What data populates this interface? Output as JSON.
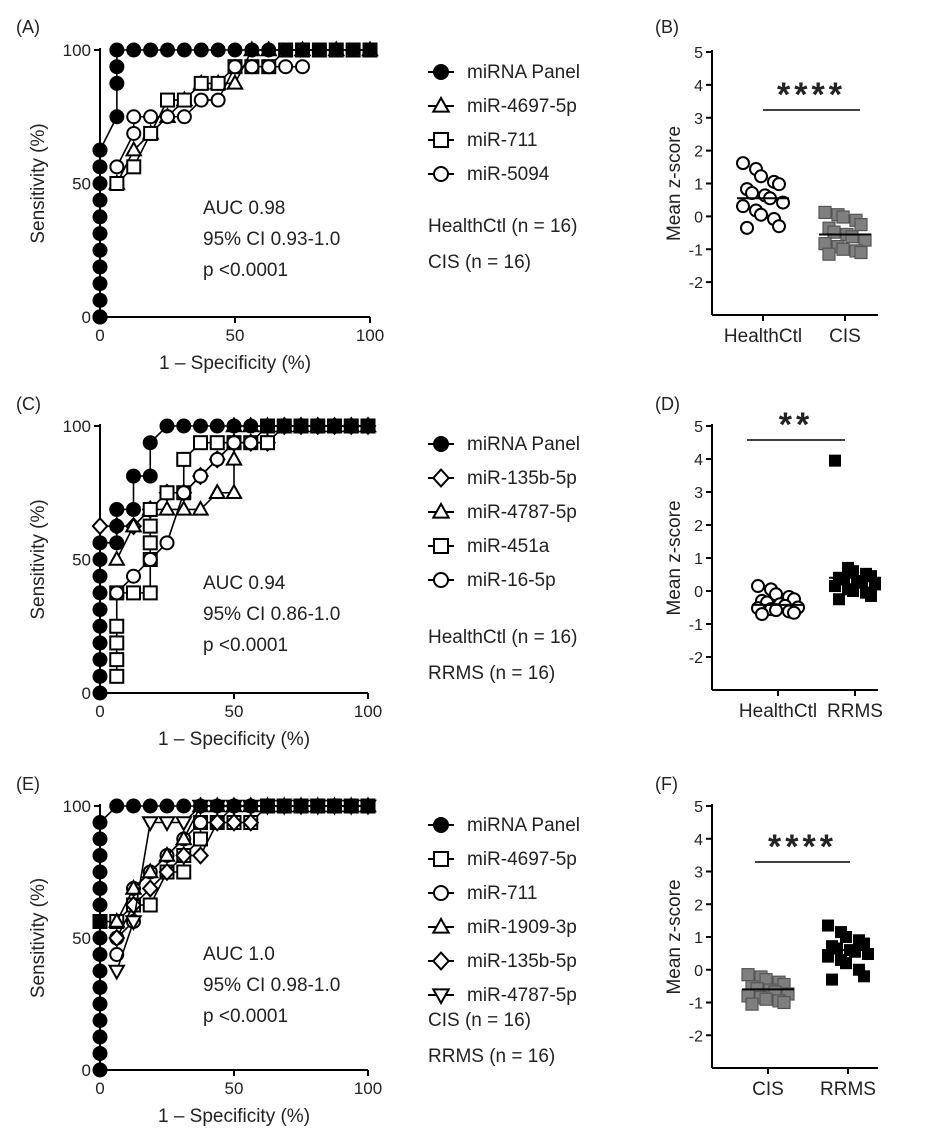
{
  "chart_data": [
    {
      "panel": "(A)",
      "type": "line",
      "xlabel": "1 – Specificity (%)",
      "ylabel": "Sensitivity (%)",
      "xlim": [
        0,
        100
      ],
      "ylim": [
        0,
        100
      ],
      "xticks": [
        "0",
        "50",
        "100"
      ],
      "yticks": [
        "0",
        "50",
        "100"
      ],
      "annotations": [
        "AUC 0.98",
        "95% CI 0.93-1.0",
        "p <0.0001"
      ],
      "groups": [
        "HealthCtl (n = 16)",
        "CIS (n = 16)"
      ],
      "series": [
        {
          "name": "miRNA Panel",
          "marker": "circle-filled",
          "x": [
            0,
            0,
            0,
            0,
            0,
            0,
            0,
            0,
            0,
            0,
            0,
            0,
            0,
            0,
            0,
            6.25,
            6.25,
            6.25,
            6.25,
            12.5,
            18.75,
            25,
            31.25,
            37.5,
            43.75,
            50,
            56.25,
            62.5,
            68.75,
            75,
            81.25,
            87.5,
            93.75,
            100
          ],
          "y": [
            0,
            6.25,
            12.5,
            18.75,
            25,
            31.25,
            37.5,
            43.75,
            50,
            56.25,
            62.5,
            0,
            0,
            0,
            62.5,
            75,
            87.5,
            93.75,
            100,
            100,
            100,
            100,
            100,
            100,
            100,
            100,
            100,
            100,
            100,
            100,
            100,
            100,
            100,
            100
          ]
        },
        {
          "name": "miR-4697-5p",
          "marker": "triangle-up",
          "x": [
            6.25,
            12.5,
            18.75,
            25,
            31.25,
            37.5,
            43.75,
            50,
            56.25,
            62.5,
            75,
            87.5,
            100
          ],
          "y": [
            50,
            62.5,
            68.75,
            75,
            81.25,
            87.5,
            87.5,
            87.5,
            100,
            100,
            100,
            100,
            100
          ]
        },
        {
          "name": "miR-711",
          "marker": "square",
          "x": [
            6.25,
            12.5,
            18.75,
            25,
            31.25,
            37.5,
            43.75,
            50,
            56.25,
            62.5,
            68.75,
            75,
            81.25,
            87.5,
            93.75,
            100
          ],
          "y": [
            50,
            56.25,
            68.75,
            81.25,
            81.25,
            87.5,
            87.5,
            93.75,
            93.75,
            93.75,
            100,
            100,
            100,
            100,
            100,
            100
          ]
        },
        {
          "name": "miR-5094",
          "marker": "circle-open",
          "x": [
            6.25,
            12.5,
            12.5,
            18.75,
            25,
            31.25,
            37.5,
            43.75,
            50,
            56.25,
            62.5,
            68.75,
            75
          ],
          "y": [
            56.25,
            68.75,
            75,
            75,
            75,
            75,
            81.25,
            81.25,
            93.75,
            93.75,
            93.75,
            93.75,
            93.75
          ]
        }
      ]
    },
    {
      "panel": "(B)",
      "type": "scatter",
      "ylabel": "Mean z-score",
      "ylim": [
        -3,
        5
      ],
      "yticks": [
        "5",
        "4",
        "3",
        "2",
        "1",
        "0",
        "-1",
        "-2"
      ],
      "categories": [
        "HealthCtl",
        "CIS"
      ],
      "significance": "****",
      "series": [
        {
          "name": "HealthCtl",
          "marker": "circle-open",
          "mean": 0.55,
          "values": [
            1.62,
            1.44,
            1.22,
            1.05,
            0.98,
            0.83,
            0.71,
            0.64,
            0.55,
            0.42,
            0.31,
            0.18,
            0.05,
            -0.08,
            -0.3,
            -0.35
          ]
        },
        {
          "name": "CIS",
          "marker": "square-gray",
          "mean": -0.55,
          "values": [
            0.12,
            0.05,
            -0.02,
            -0.12,
            -0.25,
            -0.36,
            -0.48,
            -0.55,
            -0.62,
            -0.72,
            -0.83,
            -0.92,
            -1.0,
            -1.05,
            -1.1,
            -1.15
          ]
        }
      ]
    },
    {
      "panel": "(C)",
      "type": "line",
      "xlabel": "1 – Specificity (%)",
      "ylabel": "Sensitivity (%)",
      "xlim": [
        0,
        100
      ],
      "ylim": [
        0,
        100
      ],
      "xticks": [
        "0",
        "50",
        "100"
      ],
      "yticks": [
        "0",
        "50",
        "100"
      ],
      "annotations": [
        "AUC 0.94",
        "95% CI 0.86-1.0",
        "p <0.0001"
      ],
      "groups": [
        "HealthCtl (n = 16)",
        "RRMS (n = 16)"
      ],
      "series": [
        {
          "name": "miRNA Panel",
          "marker": "circle-filled",
          "x": [
            0,
            0,
            0,
            0,
            0,
            0,
            0,
            0,
            0,
            0,
            6.25,
            6.25,
            6.25,
            12.5,
            12.5,
            18.75,
            18.75,
            25,
            31.25,
            37.5,
            43.75,
            50,
            56.25,
            62.5,
            68.75,
            75,
            81.25,
            87.5,
            93.75,
            100
          ],
          "y": [
            0,
            6.25,
            12.5,
            18.75,
            25,
            31.25,
            37.5,
            43.75,
            50,
            56.25,
            56.25,
            62.5,
            68.75,
            68.75,
            81.25,
            81.25,
            93.75,
            100,
            100,
            100,
            100,
            100,
            100,
            100,
            100,
            100,
            100,
            100,
            100,
            100
          ]
        },
        {
          "name": "miR-135b-5p",
          "marker": "diamond",
          "x": [
            0,
            6.25,
            12.5,
            18.75,
            25,
            31.25,
            37.5,
            43.75,
            50,
            56.25,
            62.5,
            68.75,
            75,
            81.25,
            87.5,
            93.75,
            100
          ],
          "y": [
            62.5,
            62.5,
            62.5,
            68.75,
            75,
            75,
            81.25,
            87.5,
            93.75,
            93.75,
            93.75,
            100,
            100,
            100,
            100,
            100,
            100
          ]
        },
        {
          "name": "miR-4787-5p",
          "marker": "triangle-up",
          "x": [
            6.25,
            12.5,
            18.75,
            25,
            31.25,
            37.5,
            43.75,
            43.75,
            50,
            50,
            50,
            56.25,
            62.5,
            68.75,
            75,
            81.25,
            87.5,
            93.75,
            100
          ],
          "y": [
            50,
            62.5,
            68.75,
            68.75,
            68.75,
            68.75,
            75,
            75,
            75,
            87.5,
            100,
            100,
            100,
            100,
            100,
            100,
            100,
            100,
            100
          ]
        },
        {
          "name": "miR-451a",
          "marker": "square",
          "x": [
            6.25,
            6.25,
            6.25,
            6.25,
            6.25,
            12.5,
            18.75,
            18.75,
            18.75,
            18.75,
            18.75,
            25,
            31.25,
            31.25,
            37.5,
            43.75,
            50,
            56.25,
            62.5,
            62.5,
            68.75,
            75,
            81.25,
            87.5,
            93.75,
            100
          ],
          "y": [
            6.25,
            12.5,
            18.75,
            25,
            37.5,
            37.5,
            37.5,
            50,
            56.25,
            62.5,
            68.75,
            75,
            75,
            87.5,
            93.75,
            93.75,
            93.75,
            93.75,
            93.75,
            100,
            100,
            100,
            100,
            100,
            100,
            100
          ]
        },
        {
          "name": "miR-16-5p",
          "marker": "circle-open",
          "x": [
            6.25,
            12.5,
            18.75,
            25,
            31.25,
            37.5,
            43.75,
            50,
            56.25,
            62.5,
            68.75,
            75,
            81.25,
            87.5,
            93.75,
            100
          ],
          "y": [
            37.5,
            43.75,
            50,
            56.25,
            75,
            81.25,
            87.5,
            93.75,
            93.75,
            100,
            100,
            100,
            100,
            100,
            100,
            100
          ]
        }
      ]
    },
    {
      "panel": "(D)",
      "type": "scatter",
      "ylabel": "Mean z-score",
      "ylim": [
        -3,
        5
      ],
      "yticks": [
        "5",
        "4",
        "3",
        "2",
        "1",
        "0",
        "-1",
        "-2"
      ],
      "categories": [
        "HealthCtl",
        "RRMS"
      ],
      "significance": "**",
      "series": [
        {
          "name": "HealthCtl",
          "marker": "circle-open",
          "mean": -0.42,
          "values": [
            0.15,
            0.05,
            -0.1,
            -0.18,
            -0.25,
            -0.3,
            -0.35,
            -0.4,
            -0.45,
            -0.5,
            -0.52,
            -0.55,
            -0.58,
            -0.62,
            -0.66,
            -0.7
          ]
        },
        {
          "name": "RRMS",
          "marker": "square-black",
          "mean": 0.4,
          "values": [
            3.95,
            0.7,
            0.6,
            0.52,
            0.45,
            0.4,
            0.35,
            0.3,
            0.25,
            0.2,
            0.15,
            0.05,
            0.0,
            -0.05,
            -0.15,
            -0.25
          ]
        }
      ]
    },
    {
      "panel": "(E)",
      "type": "line",
      "xlabel": "1 – Specificity (%)",
      "ylabel": "Sensitivity (%)",
      "xlim": [
        0,
        100
      ],
      "ylim": [
        0,
        100
      ],
      "xticks": [
        "0",
        "50",
        "100"
      ],
      "yticks": [
        "0",
        "50",
        "100"
      ],
      "annotations": [
        "AUC 1.0",
        "95% CI 0.98-1.0",
        "p <0.0001"
      ],
      "groups": [
        "CIS (n = 16)",
        "RRMS (n = 16)"
      ],
      "series": [
        {
          "name": "miRNA Panel",
          "marker": "circle-filled",
          "x": [
            0,
            0,
            0,
            0,
            0,
            0,
            0,
            0,
            0,
            0,
            0,
            0,
            0,
            0,
            0,
            0,
            6.25,
            12.5,
            18.75,
            25,
            31.25,
            37.5,
            43.75,
            50,
            56.25,
            62.5,
            68.75,
            75,
            81.25,
            87.5,
            93.75,
            100
          ],
          "y": [
            0,
            6.25,
            12.5,
            18.75,
            25,
            31.25,
            37.5,
            43.75,
            50,
            56.25,
            62.5,
            68.75,
            75,
            81.25,
            87.5,
            93.75,
            100,
            100,
            100,
            100,
            100,
            100,
            100,
            100,
            100,
            100,
            100,
            100,
            100,
            100,
            100,
            100
          ]
        },
        {
          "name": "miR-4697-5p",
          "marker": "square",
          "x": [
            0,
            6.25,
            12.5,
            18.75,
            25,
            31.25,
            31.25,
            37.5,
            37.5,
            43.75,
            50,
            56.25,
            62.5,
            68.75,
            75,
            81.25,
            87.5,
            93.75,
            100
          ],
          "y": [
            56.25,
            56.25,
            62.5,
            62.5,
            75,
            75,
            81.25,
            87.5,
            93.75,
            93.75,
            93.75,
            93.75,
            100,
            100,
            100,
            100,
            100,
            100,
            100
          ]
        },
        {
          "name": "miR-711",
          "marker": "circle-open",
          "x": [
            6.25,
            6.25,
            12.5,
            12.5,
            18.75,
            25,
            31.25,
            37.5,
            43.75,
            50,
            56.25,
            62.5,
            68.75,
            75,
            81.25,
            87.5,
            93.75,
            100
          ],
          "y": [
            43.75,
            50,
            56.25,
            68.75,
            75,
            81.25,
            87.5,
            93.75,
            93.75,
            100,
            100,
            100,
            100,
            100,
            100,
            100,
            100,
            100
          ]
        },
        {
          "name": "miR-1909-3p",
          "marker": "triangle-up",
          "x": [
            6.25,
            12.5,
            18.75,
            25,
            31.25,
            37.5,
            43.75,
            50,
            56.25,
            62.5,
            68.75,
            75,
            81.25,
            87.5,
            93.75,
            100
          ],
          "y": [
            56.25,
            68.75,
            75,
            81.25,
            87.5,
            100,
            100,
            100,
            100,
            100,
            100,
            100,
            100,
            100,
            100,
            100
          ]
        },
        {
          "name": "miR-135b-5p",
          "marker": "diamond",
          "x": [
            6.25,
            12.5,
            18.75,
            25,
            31.25,
            37.5,
            43.75,
            50,
            56.25
          ],
          "y": [
            50,
            62.5,
            68.75,
            75,
            81.25,
            81.25,
            93.75,
            93.75,
            93.75
          ]
        },
        {
          "name": "miR-4787-5p",
          "marker": "triangle-down",
          "x": [
            6.25,
            12.5,
            18.75,
            25,
            31.25,
            37.5,
            43.75,
            50,
            56.25,
            62.5,
            68.75,
            75,
            81.25,
            87.5,
            93.75,
            100
          ],
          "y": [
            37.5,
            56.25,
            93.75,
            93.75,
            93.75,
            100,
            100,
            100,
            100,
            100,
            100,
            100,
            100,
            100,
            100,
            100
          ]
        }
      ]
    },
    {
      "panel": "(F)",
      "type": "scatter",
      "ylabel": "Mean z-score",
      "ylim": [
        -3,
        5
      ],
      "yticks": [
        "5",
        "4",
        "3",
        "2",
        "1",
        "0",
        "-1",
        "-2"
      ],
      "categories": [
        "CIS",
        "RRMS"
      ],
      "significance": "****",
      "series": [
        {
          "name": "CIS",
          "marker": "square-gray",
          "mean": -0.6,
          "values": [
            -0.15,
            -0.22,
            -0.3,
            -0.38,
            -0.45,
            -0.52,
            -0.58,
            -0.62,
            -0.68,
            -0.74,
            -0.8,
            -0.85,
            -0.9,
            -0.95,
            -1.0,
            -1.05
          ]
        },
        {
          "name": "RRMS",
          "marker": "square-black",
          "mean": 0.6,
          "values": [
            1.35,
            1.15,
            1.0,
            0.9,
            0.8,
            0.72,
            0.65,
            0.6,
            0.55,
            0.48,
            0.4,
            0.3,
            0.2,
            0.0,
            -0.2,
            -0.3
          ]
        }
      ]
    }
  ]
}
